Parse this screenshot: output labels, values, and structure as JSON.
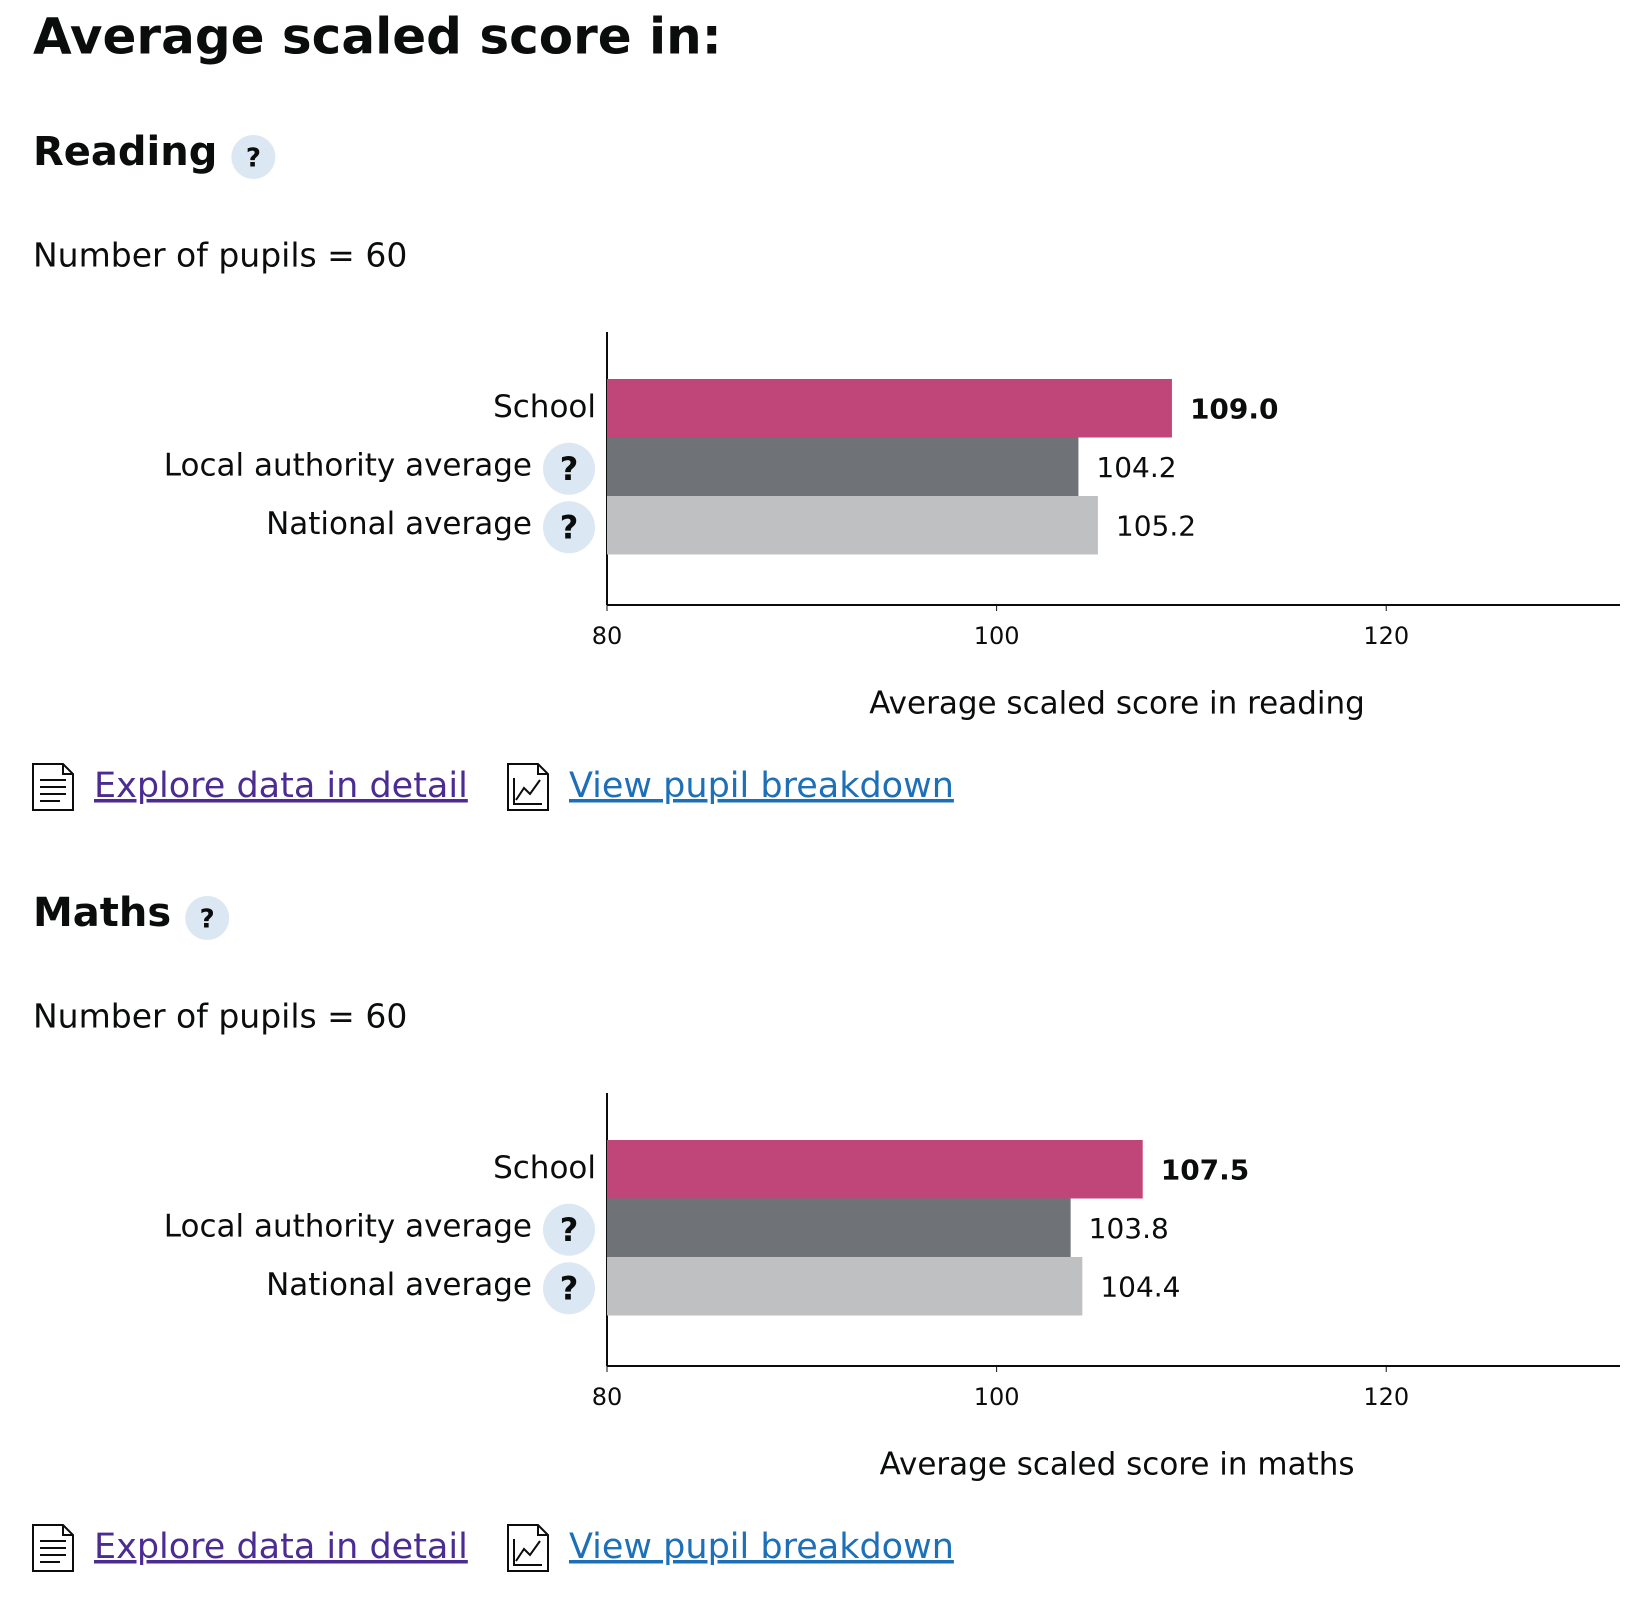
{
  "title": "Average scaled score in:",
  "help_icon": "?",
  "sections": [
    {
      "heading": "Reading",
      "pupils": "Number of pupils = 60",
      "links": [
        "Explore data in detail",
        "View pupil breakdown"
      ]
    },
    {
      "heading": "Maths",
      "pupils": "Number of pupils = 60",
      "links": [
        "Explore data in detail",
        "View pupil breakdown"
      ]
    }
  ],
  "chart_data": [
    {
      "type": "bar",
      "orientation": "horizontal",
      "xlabel": "Average scaled score in reading",
      "categories": [
        "School",
        "Local authority average",
        "National average"
      ],
      "values": [
        109.0,
        104.2,
        105.2
      ],
      "value_labels": [
        "109.0",
        "104.2",
        "105.2"
      ],
      "colors": [
        "#c0467a",
        "#6f7377",
        "#bfc0c2"
      ],
      "xlim": [
        80,
        132
      ],
      "xticks": [
        80,
        100,
        120
      ]
    },
    {
      "type": "bar",
      "orientation": "horizontal",
      "xlabel": "Average scaled score in maths",
      "categories": [
        "School",
        "Local authority average",
        "National average"
      ],
      "values": [
        107.5,
        103.8,
        104.4
      ],
      "value_labels": [
        "107.5",
        "103.8",
        "104.4"
      ],
      "colors": [
        "#c0467a",
        "#6f7377",
        "#bfc0c2"
      ],
      "xlim": [
        80,
        132
      ],
      "xticks": [
        80,
        100,
        120
      ]
    }
  ]
}
